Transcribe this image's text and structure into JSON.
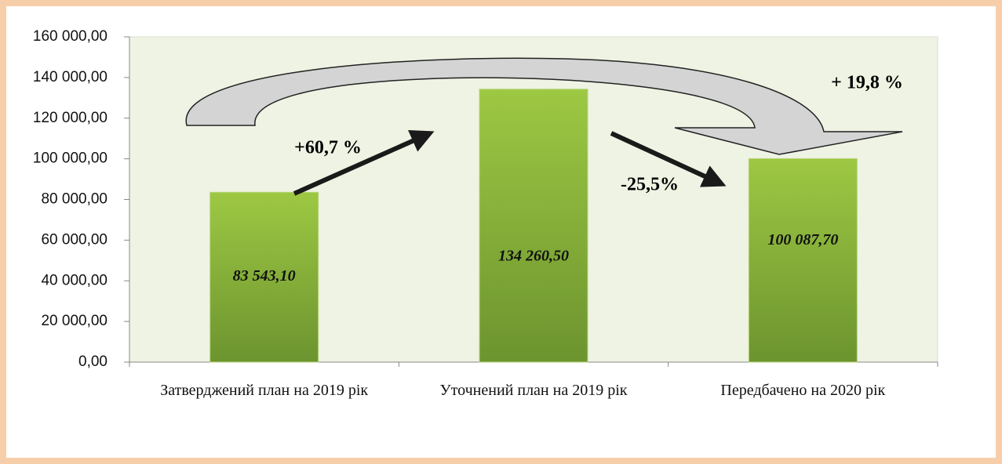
{
  "chart_data": {
    "type": "bar",
    "categories": [
      "Затверджений план на 2019 рік",
      "Уточнений план на 2019 рік",
      "Передбачено на 2020 рік"
    ],
    "values": [
      83543.1,
      134260.5,
      100087.7
    ],
    "value_labels": [
      "83 543,10",
      "134 260,50",
      "100 087,70"
    ],
    "color": "#8bb63a",
    "ylim": [
      0,
      160000
    ],
    "yticks": [
      {
        "value": 0,
        "label": "0,00"
      },
      {
        "value": 20000,
        "label": "20 000,00"
      },
      {
        "value": 40000,
        "label": "40 000,00"
      },
      {
        "value": 60000,
        "label": "60 000,00"
      },
      {
        "value": 80000,
        "label": "80 000,00"
      },
      {
        "value": 100000,
        "label": "100 000,00"
      },
      {
        "value": 120000,
        "label": "120 000,00"
      },
      {
        "value": 140000,
        "label": "140 000,00"
      },
      {
        "value": 160000,
        "label": "160 000,00"
      }
    ],
    "annotations": [
      "+60,7 %",
      "-25,5%",
      "+ 19,8 %"
    ]
  }
}
